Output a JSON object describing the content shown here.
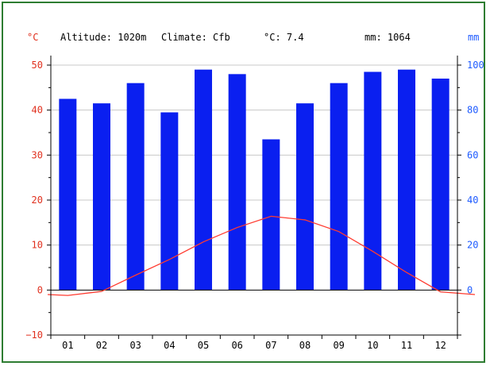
{
  "header": {
    "altitude": "Altitude: 1020m",
    "climate": "Climate: Cfb",
    "mean_temp": "°C: 7.4",
    "precip_total": "mm: 1064"
  },
  "colors": {
    "temperature": "#ff3b30",
    "precipitation": "#0a1ff0",
    "left_axis": "#e0301e",
    "right_axis": "#1e5bff",
    "frame": "#2e7d32"
  },
  "chart_data": {
    "type": "bar",
    "categories": [
      "01",
      "02",
      "03",
      "04",
      "05",
      "06",
      "07",
      "08",
      "09",
      "10",
      "11",
      "12"
    ],
    "series": [
      {
        "kind": "bar",
        "axis": "right",
        "values": [
          85,
          83,
          92,
          79,
          98,
          96,
          67,
          83,
          92,
          97,
          98,
          94
        ]
      },
      {
        "kind": "line",
        "axis": "left",
        "values": [
          -1.2,
          -0.3,
          3.3,
          6.8,
          10.7,
          13.9,
          16.4,
          15.6,
          13.0,
          8.6,
          3.9,
          -0.4
        ]
      }
    ],
    "left_axis": {
      "label": "°C",
      "ylim": [
        -10,
        50
      ],
      "ticks": [
        -10,
        0,
        10,
        20,
        30,
        40,
        50
      ]
    },
    "right_axis": {
      "label": "mm",
      "ylim": [
        -20,
        100
      ],
      "ticks": [
        0,
        20,
        40,
        60,
        80,
        100
      ]
    },
    "grid": "horizontal",
    "legend": "none"
  }
}
